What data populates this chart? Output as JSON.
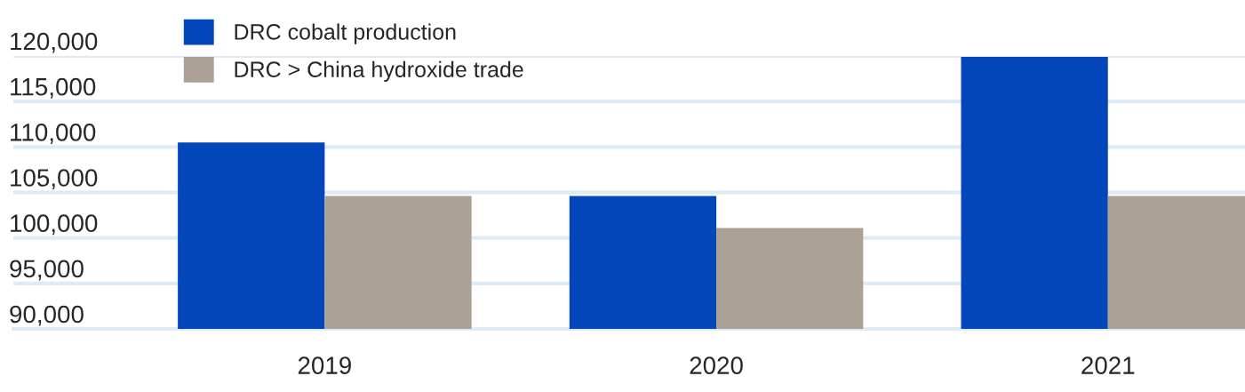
{
  "chart_data": {
    "type": "bar",
    "categories": [
      "2019",
      "2020",
      "2021"
    ],
    "series": [
      {
        "name": "DRC cobalt production",
        "color": "#0447bb",
        "values": [
          110500,
          104600,
          119900
        ]
      },
      {
        "name": "DRC > China hydroxide trade",
        "color": "#aba194",
        "values": [
          104600,
          101100,
          104600
        ]
      }
    ],
    "ylim": [
      90000,
      120000
    ],
    "yticks": [
      {
        "value": 90000,
        "label": "90,000"
      },
      {
        "value": 95000,
        "label": "95,000"
      },
      {
        "value": 100000,
        "label": "100,000"
      },
      {
        "value": 105000,
        "label": "105,000"
      },
      {
        "value": 110000,
        "label": "110,000"
      },
      {
        "value": 115000,
        "label": "115,000"
      },
      {
        "value": 120000,
        "label": "120,000"
      }
    ],
    "grid": "y",
    "legend": "top left"
  }
}
